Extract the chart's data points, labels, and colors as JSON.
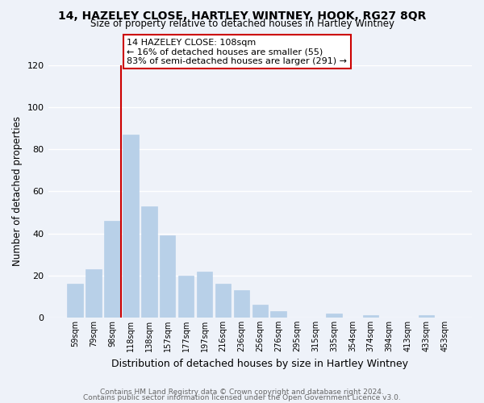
{
  "title": "14, HAZELEY CLOSE, HARTLEY WINTNEY, HOOK, RG27 8QR",
  "subtitle": "Size of property relative to detached houses in Hartley Wintney",
  "xlabel": "Distribution of detached houses by size in Hartley Wintney",
  "ylabel": "Number of detached properties",
  "categories": [
    "59sqm",
    "79sqm",
    "98sqm",
    "118sqm",
    "138sqm",
    "157sqm",
    "177sqm",
    "197sqm",
    "216sqm",
    "236sqm",
    "256sqm",
    "276sqm",
    "295sqm",
    "315sqm",
    "335sqm",
    "354sqm",
    "374sqm",
    "394sqm",
    "413sqm",
    "433sqm",
    "453sqm"
  ],
  "values": [
    16,
    23,
    46,
    87,
    53,
    39,
    20,
    22,
    16,
    13,
    6,
    3,
    0,
    0,
    2,
    0,
    1,
    0,
    0,
    1,
    0
  ],
  "bar_color": "#b8d0e8",
  "vline_color": "#cc0000",
  "vline_index": 3,
  "annotation_title": "14 HAZELEY CLOSE: 108sqm",
  "annotation_line1": "← 16% of detached houses are smaller (55)",
  "annotation_line2": "83% of semi-detached houses are larger (291) →",
  "box_color": "#ffffff",
  "box_edge_color": "#cc0000",
  "ylim": [
    0,
    120
  ],
  "yticks": [
    0,
    20,
    40,
    60,
    80,
    100,
    120
  ],
  "footer1": "Contains HM Land Registry data © Crown copyright and database right 2024.",
  "footer2": "Contains public sector information licensed under the Open Government Licence v3.0.",
  "background_color": "#eef2f9",
  "grid_color": "#ffffff"
}
